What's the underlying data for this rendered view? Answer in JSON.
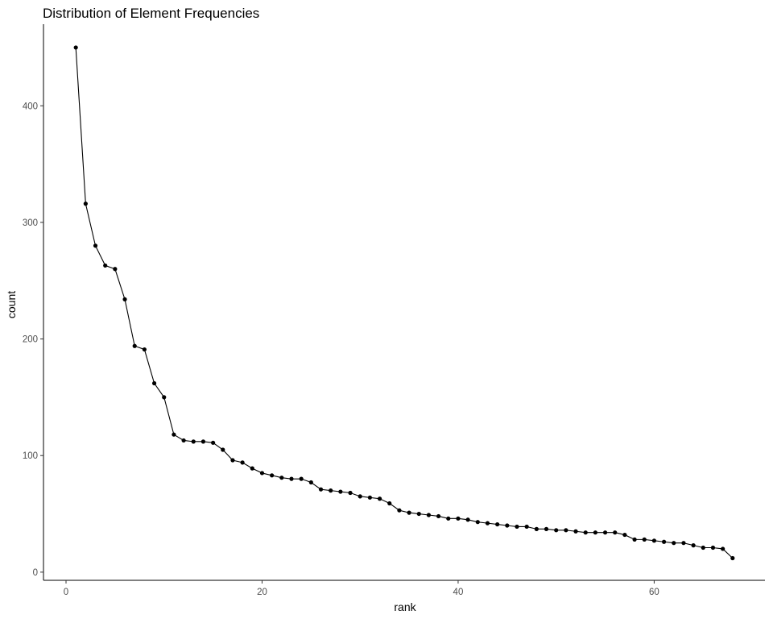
{
  "chart_data": {
    "type": "line",
    "title": "Distribution of Element Frequencies",
    "xlabel": "rank",
    "ylabel": "count",
    "xlim": [
      -2.3,
      71.3
    ],
    "ylim": [
      -7,
      470
    ],
    "x_ticks": [
      0,
      20,
      40,
      60
    ],
    "y_ticks": [
      0,
      100,
      200,
      300,
      400
    ],
    "grid": false,
    "legend": "none",
    "markers": true,
    "line_color": "#000000",
    "x": [
      1,
      2,
      3,
      4,
      5,
      6,
      7,
      8,
      9,
      10,
      11,
      12,
      13,
      14,
      15,
      16,
      17,
      18,
      19,
      20,
      21,
      22,
      23,
      24,
      25,
      26,
      27,
      28,
      29,
      30,
      31,
      32,
      33,
      34,
      35,
      36,
      37,
      38,
      39,
      40,
      41,
      42,
      43,
      44,
      45,
      46,
      47,
      48,
      49,
      50,
      51,
      52,
      53,
      54,
      55,
      56,
      57,
      58,
      59,
      60,
      61,
      62,
      63,
      64,
      65,
      66,
      67,
      68
    ],
    "y": [
      450,
      316,
      280,
      263,
      260,
      234,
      194,
      191,
      162,
      150,
      118,
      113,
      112,
      112,
      111,
      105,
      96,
      94,
      89,
      85,
      83,
      81,
      80,
      80,
      77,
      71,
      70,
      69,
      68,
      65,
      64,
      63,
      59,
      53,
      51,
      50,
      49,
      48,
      46,
      46,
      45,
      43,
      42,
      41,
      40,
      39,
      39,
      37,
      37,
      36,
      36,
      35,
      34,
      34,
      34,
      34,
      32,
      28,
      28,
      27,
      26,
      25,
      25,
      23,
      21,
      21,
      20,
      12
    ]
  }
}
